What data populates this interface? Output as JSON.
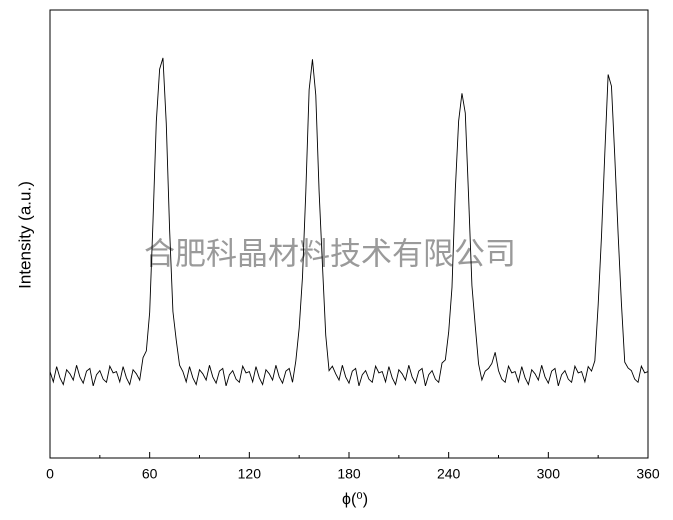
{
  "chart_data": {
    "type": "line",
    "xlabel": "ϕ(⁰)",
    "ylabel": "Intensity (a.u.)",
    "watermark": "合肥科晶材料技术有限公司",
    "color": "#000000",
    "xlim": [
      0,
      360
    ],
    "ylim": [
      0,
      100
    ],
    "xticks": [
      0,
      60,
      120,
      180,
      240,
      300,
      360
    ],
    "xminorticks": [
      30,
      90,
      150,
      210,
      270,
      330
    ],
    "x": [
      0,
      2,
      4,
      6,
      8,
      10,
      12,
      14,
      16,
      18,
      20,
      22,
      24,
      26,
      28,
      30,
      32,
      34,
      36,
      38,
      40,
      42,
      44,
      46,
      48,
      50,
      52,
      54,
      56,
      58,
      60,
      62,
      64,
      66,
      68,
      70,
      72,
      74,
      76,
      78,
      80,
      82,
      84,
      86,
      88,
      90,
      92,
      94,
      96,
      98,
      100,
      102,
      104,
      106,
      108,
      110,
      112,
      114,
      116,
      118,
      120,
      122,
      124,
      126,
      128,
      130,
      132,
      134,
      136,
      138,
      140,
      142,
      144,
      146,
      148,
      150,
      152,
      154,
      156,
      158,
      160,
      162,
      164,
      166,
      168,
      170,
      172,
      174,
      176,
      178,
      180,
      182,
      184,
      186,
      188,
      190,
      192,
      194,
      196,
      198,
      200,
      202,
      204,
      206,
      208,
      210,
      212,
      214,
      216,
      218,
      220,
      222,
      224,
      226,
      228,
      230,
      232,
      234,
      236,
      238,
      240,
      242,
      244,
      246,
      248,
      250,
      252,
      254,
      256,
      258,
      260,
      262,
      264,
      266,
      268,
      270,
      272,
      274,
      276,
      278,
      280,
      282,
      284,
      286,
      288,
      290,
      292,
      294,
      296,
      298,
      300,
      302,
      304,
      306,
      308,
      310,
      312,
      314,
      316,
      318,
      320,
      322,
      324,
      326,
      328,
      330,
      332,
      334,
      336,
      338,
      340,
      342,
      344,
      346,
      348,
      350,
      352,
      354,
      356,
      358,
      360
    ],
    "values": [
      19.3,
      17.0,
      20.4,
      17.9,
      16.4,
      19.7,
      18.8,
      17.4,
      20.7,
      18.1,
      16.7,
      19.4,
      20.0,
      16.1,
      18.6,
      19.5,
      17.6,
      16.9,
      20.5,
      19.0,
      19.3,
      17.0,
      20.4,
      17.9,
      16.4,
      19.7,
      18.8,
      17.4,
      22.4,
      23.9,
      32.5,
      52.8,
      75.1,
      86.8,
      89.3,
      74.6,
      51.0,
      32.7,
      26.3,
      20.7,
      19.3,
      17.0,
      20.4,
      17.9,
      16.4,
      19.7,
      18.8,
      17.4,
      20.7,
      18.1,
      16.7,
      19.4,
      20.0,
      16.1,
      18.6,
      19.5,
      17.6,
      16.9,
      20.5,
      19.0,
      19.3,
      17.0,
      20.4,
      17.9,
      16.4,
      19.7,
      18.8,
      17.4,
      20.7,
      18.1,
      16.7,
      19.4,
      20.0,
      16.9,
      21.7,
      29.0,
      40.4,
      59.4,
      82.2,
      89.0,
      81.0,
      59.5,
      43.2,
      27.4,
      19.5,
      20.5,
      18.8,
      17.4,
      20.7,
      18.1,
      16.7,
      19.4,
      20.0,
      16.1,
      18.6,
      19.5,
      17.6,
      16.9,
      20.5,
      19.0,
      19.3,
      17.0,
      20.4,
      17.9,
      16.4,
      19.7,
      18.8,
      17.4,
      20.7,
      18.1,
      16.7,
      19.4,
      20.0,
      16.1,
      18.6,
      19.5,
      17.6,
      16.9,
      21.2,
      21.9,
      28.1,
      38.1,
      59.9,
      75.2,
      81.4,
      77.0,
      58.3,
      38.5,
      29.5,
      21.0,
      17.4,
      19.4,
      20.0,
      21.1,
      23.6,
      19.5,
      17.6,
      16.9,
      20.5,
      19.0,
      19.3,
      17.0,
      20.4,
      17.9,
      16.4,
      19.7,
      18.8,
      17.4,
      20.7,
      18.1,
      16.7,
      19.4,
      20.0,
      16.1,
      18.6,
      19.5,
      17.6,
      16.9,
      20.5,
      19.0,
      19.3,
      17.0,
      20.4,
      19.4,
      21.7,
      34.2,
      49.5,
      68.0,
      85.6,
      83.0,
      67.3,
      50.1,
      34.5,
      21.4,
      20.1,
      19.5,
      17.6,
      16.9,
      20.5,
      19.0,
      19.3
    ]
  }
}
